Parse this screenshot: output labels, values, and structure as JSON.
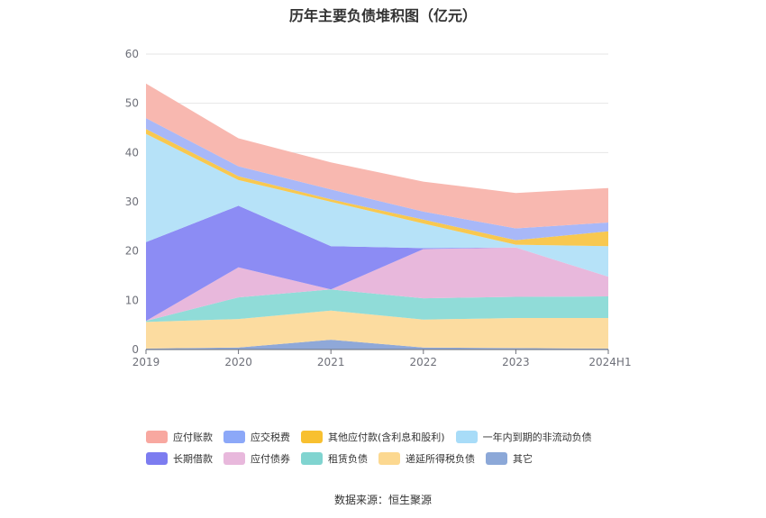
{
  "title": "历年主要负债堆积图（亿元）",
  "source": "数据来源：恒生聚源",
  "chart_data": {
    "type": "area",
    "stacked": true,
    "categories": [
      "2019",
      "2020",
      "2021",
      "2022",
      "2023",
      "2024H1"
    ],
    "ylim": [
      0,
      60
    ],
    "yticks": [
      0,
      10,
      20,
      30,
      40,
      50,
      60
    ],
    "grid": true,
    "legend_position": "bottom",
    "series": [
      {
        "name": "其它",
        "color": "#8fa8d8",
        "values": [
          0.2,
          0.4,
          2.0,
          0.4,
          0.3,
          0.2
        ]
      },
      {
        "name": "递延所得税负债",
        "color": "#fcdca0",
        "values": [
          5.4,
          5.8,
          5.9,
          5.7,
          6.1,
          6.2
        ]
      },
      {
        "name": "租赁负债",
        "color": "#90dcd8",
        "values": [
          0.2,
          4.4,
          4.3,
          4.3,
          4.3,
          4.4
        ]
      },
      {
        "name": "应付债券",
        "color": "#e8b8dc",
        "values": [
          0.0,
          6.1,
          0.0,
          10.0,
          10.0,
          4.0
        ]
      },
      {
        "name": "长期借款",
        "color": "#8c8cf4",
        "values": [
          16.0,
          12.5,
          8.8,
          0.2,
          0.0,
          0.0
        ]
      },
      {
        "name": "一年内到期的非流动负债",
        "color": "#b6e2f8",
        "values": [
          22.0,
          5.2,
          9.0,
          5.0,
          0.6,
          6.2
        ]
      },
      {
        "name": "其他应付款(含利息和股利)",
        "color": "#f8c850",
        "values": [
          1.0,
          0.8,
          0.5,
          0.8,
          0.9,
          3.0
        ]
      },
      {
        "name": "应交税费",
        "color": "#a8b8f8",
        "values": [
          2.2,
          2.0,
          2.0,
          1.6,
          2.4,
          1.8
        ]
      },
      {
        "name": "应付账款",
        "color": "#f8b8b0",
        "values": [
          7.0,
          5.7,
          5.5,
          6.1,
          7.2,
          7.0
        ]
      }
    ]
  },
  "legend": {
    "row1": [
      {
        "label": "应付账款",
        "color": "#f8a8a0"
      },
      {
        "label": "应交税费",
        "color": "#8ca8f8"
      },
      {
        "label": "其他应付款(含利息和股利)",
        "color": "#f8c030"
      },
      {
        "label": "一年内到期的非流动负债",
        "color": "#a8dcf8"
      }
    ],
    "row2": [
      {
        "label": "长期借款",
        "color": "#7c7cf0"
      },
      {
        "label": "应付债券",
        "color": "#e8b8dc"
      },
      {
        "label": "租赁负债",
        "color": "#80d4d0"
      },
      {
        "label": "递延所得税负债",
        "color": "#fcd890"
      },
      {
        "label": "其它",
        "color": "#8ca8d8"
      }
    ]
  }
}
